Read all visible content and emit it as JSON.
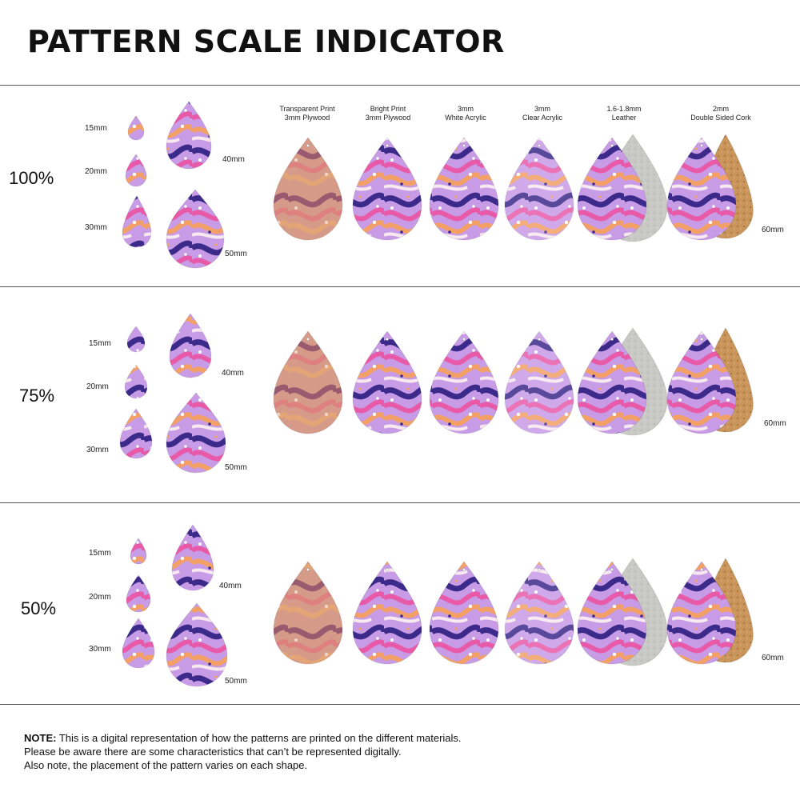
{
  "title": "PATTERN SCALE INDICATOR",
  "materials": [
    {
      "line1": "Transparent Print",
      "line2": "3mm Plywood"
    },
    {
      "line1": "Bright Print",
      "line2": "3mm Plywood"
    },
    {
      "line1": "3mm",
      "line2": "White Acrylic"
    },
    {
      "line1": "3mm",
      "line2": "Clear Acrylic"
    },
    {
      "line1": "1.6-1.8mm",
      "line2": "Leather"
    },
    {
      "line1": "2mm",
      "line2": "Double Sided Cork"
    }
  ],
  "sizes": [
    "15mm",
    "20mm",
    "30mm",
    "40mm",
    "50mm",
    "60mm"
  ],
  "scales": [
    "100%",
    "75%",
    "50%"
  ],
  "note": {
    "label": "NOTE:",
    "line1": " This is a digital representation of how the patterns are printed on the different materials.",
    "line2": "Please be aware there are some characteristics that can’t be represented digitally.",
    "line3": "Also note, the placement of the pattern varies on each shape."
  },
  "colors": {
    "purple": "#3b2a8a",
    "pink": "#e85aa8",
    "lavender": "#b58de0",
    "orange": "#f3a066",
    "cream": "#f7e9ef",
    "wood": "#c98e6f",
    "leather": "#c8c8c4",
    "cork": "#c9955a"
  }
}
